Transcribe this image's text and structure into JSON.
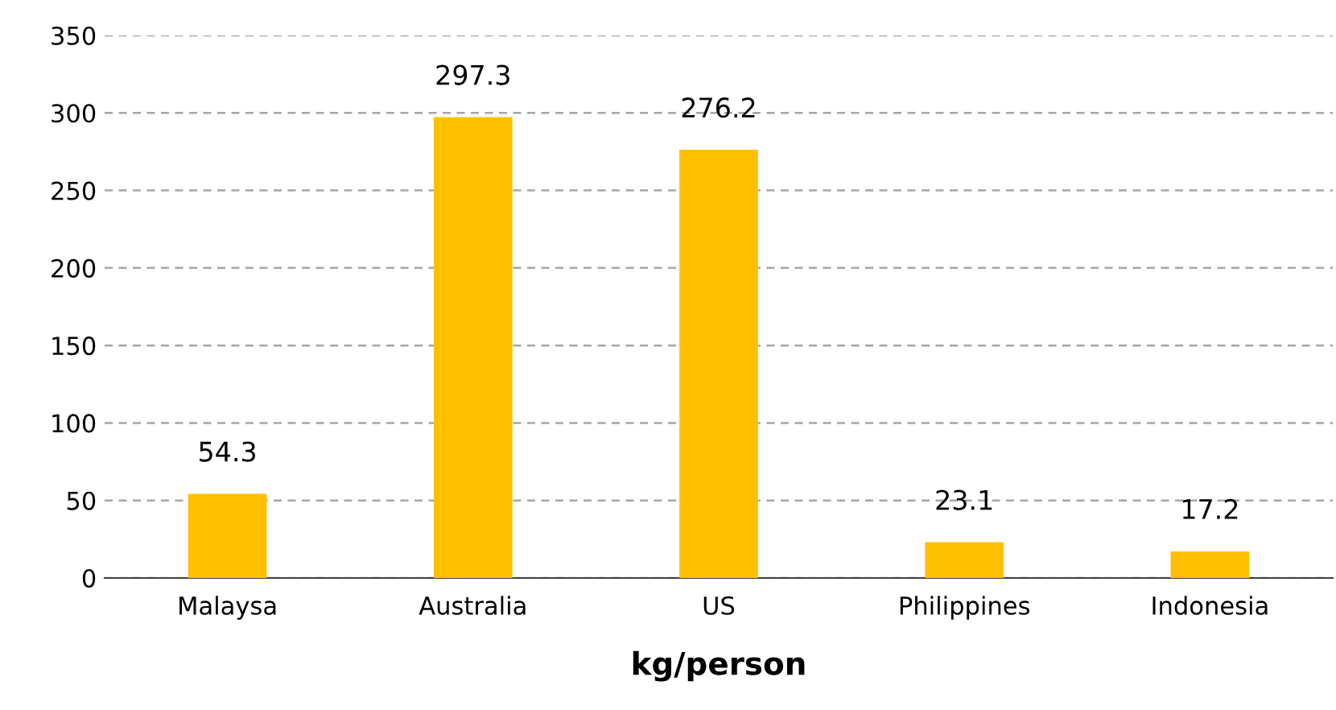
{
  "chart_data": {
    "type": "bar",
    "xlabel": "kg/person",
    "categories": [
      "Malaysa",
      "Australia",
      "US",
      "Philippines",
      "Indonesia"
    ],
    "values": [
      54.3,
      297.3,
      276.2,
      23.1,
      17.2
    ],
    "color": "#ffc000",
    "ylim": [
      0,
      350
    ],
    "yticks": [
      0,
      50,
      100,
      150,
      200,
      250,
      300,
      350
    ],
    "grid": "y",
    "data_labels": true
  }
}
